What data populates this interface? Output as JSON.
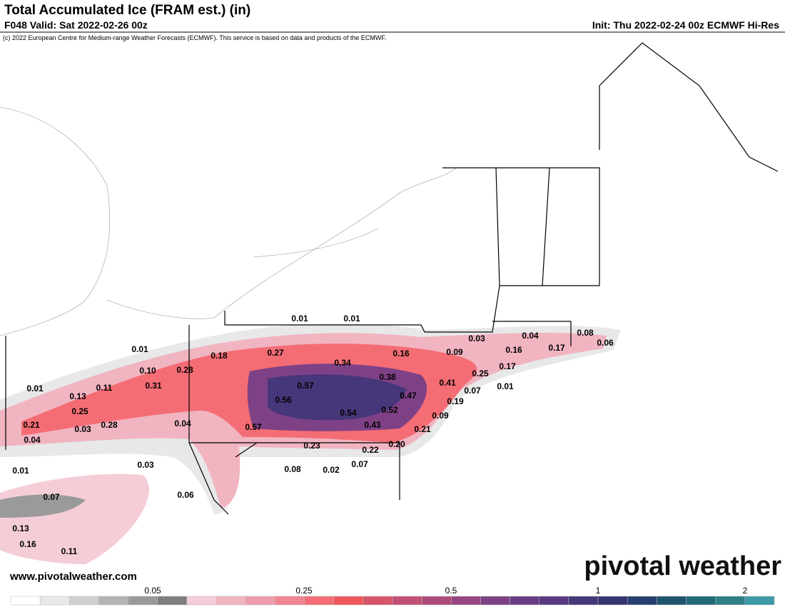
{
  "header": {
    "title": "Total Accumulated Ice (FRAM est.) (in)",
    "valid": "F048 Valid: Sat 2022-02-26 00z",
    "init": "Init: Thu 2022-02-24 00z ECMWF Hi-Res",
    "copyright": "(c) 2022 European Centre for Medium-range Weather Forecasts (ECMWF). This service is based on data and products of the ECMWF."
  },
  "map": {
    "labels": [
      "0.01",
      "0.01",
      "0.03",
      "0.04",
      "0.08",
      "0.06",
      "0.01",
      "0.18",
      "0.27",
      "0.16",
      "0.09",
      "0.16",
      "0.17",
      "0.34",
      "0.10",
      "0.28",
      "0.38",
      "0.25",
      "0.17",
      "0.01",
      "0.13",
      "0.11",
      "0.31",
      "0.57",
      "0.41",
      "0.07",
      "0.01",
      "0.56",
      "0.47",
      "0.19",
      "0.25",
      "0.54",
      "0.52",
      "0.09",
      "0.21",
      "0.03",
      "0.28",
      "0.04",
      "0.57",
      "0.43",
      "0.21",
      "0.04",
      "0.23",
      "0.20",
      "0.22",
      "0.03",
      "0.08",
      "0.02",
      "0.07",
      "0.01",
      "0.07",
      "0.06",
      "0.13",
      "0.16",
      "0.11"
    ]
  },
  "legend": {
    "ticks": [
      "0.05",
      "0.25",
      "0.5",
      "1",
      "2"
    ],
    "colors": [
      "#ffffff",
      "#e8e8e8",
      "#d0d0d0",
      "#b4b4b4",
      "#9a9a9a",
      "#7e7e7e",
      "#f5cdd6",
      "#f1b4c1",
      "#ee9cac",
      "#f18592",
      "#f46d75",
      "#f0575c",
      "#d6546b",
      "#c25074",
      "#ad4b7c",
      "#974682",
      "#7e4186",
      "#683d86",
      "#573a82",
      "#46367a",
      "#373370",
      "#263f6c",
      "#1e536e",
      "#226a78",
      "#2d8088",
      "#3d9aa6"
    ]
  },
  "footer": {
    "website": "www.pivotalweather.com",
    "logo": "pivotal weather"
  }
}
